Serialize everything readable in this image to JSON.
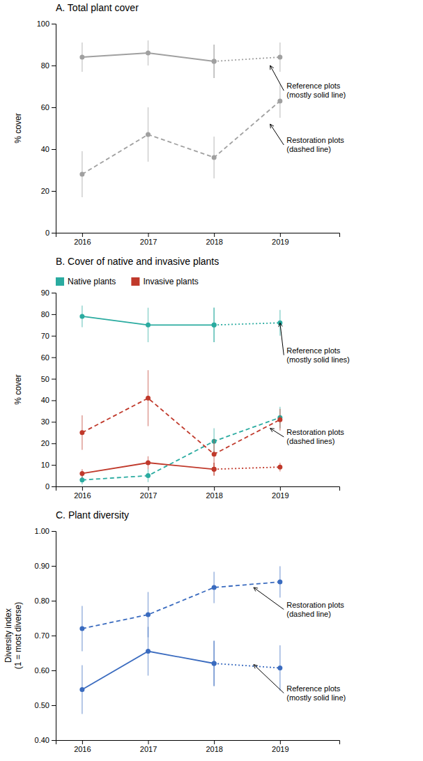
{
  "chart_data": [
    {
      "type": "line",
      "title": "A. Total plant cover",
      "y_label": "% cover",
      "x": [
        2016,
        2017,
        2018,
        2019
      ],
      "xlim": [
        2015.6,
        2019.9
      ],
      "xticks": [
        2016,
        2017,
        2018,
        2019
      ],
      "ylim": [
        0,
        100
      ],
      "yticks": [
        0,
        20,
        40,
        60,
        80,
        100
      ],
      "grid": false,
      "series": [
        {
          "color": "#a0a0a0",
          "line_style": "solid",
          "marker": "circle",
          "values": [
            84,
            86,
            82,
            null
          ],
          "error": [
            7,
            6,
            8,
            null
          ]
        },
        {
          "color": "#a0a0a0",
          "line_style": "dotted",
          "marker": "circle",
          "values": [
            null,
            null,
            82,
            84
          ],
          "error": [
            null,
            null,
            8,
            7
          ]
        },
        {
          "color": "#a0a0a0",
          "line_style": "dashed",
          "marker": "circle",
          "values": [
            28,
            47,
            36,
            63
          ],
          "error": [
            11,
            13,
            10,
            8
          ]
        }
      ],
      "annotations": [
        {
          "text": "Reference plots\n(mostly solid line)",
          "x": 2019.1,
          "y": 68,
          "arrow_x": 2018.85,
          "arrow_y": 80
        },
        {
          "text": "Restoration plots\n(dashed line)",
          "x": 2019.1,
          "y": 42,
          "arrow_x": 2018.85,
          "arrow_y": 52
        }
      ]
    },
    {
      "type": "line",
      "title": "B.  Cover of native and invasive plants",
      "y_label": "% cover",
      "x": [
        2016,
        2017,
        2018,
        2019
      ],
      "xlim": [
        2015.6,
        2019.9
      ],
      "xticks": [
        2016,
        2017,
        2018,
        2019
      ],
      "ylim": [
        0,
        90
      ],
      "yticks": [
        0,
        10,
        20,
        30,
        40,
        50,
        60,
        70,
        80,
        90
      ],
      "grid": false,
      "legend": "top",
      "series": [
        {
          "name": "Native plants",
          "color": "#2aaba0",
          "line_style": "solid",
          "marker": "circle",
          "values": [
            79,
            75,
            75,
            null
          ],
          "error": [
            5,
            8,
            8,
            null
          ]
        },
        {
          "name": "Native plants",
          "color": "#2aaba0",
          "line_style": "dotted",
          "marker": "circle",
          "values": [
            null,
            null,
            75,
            76
          ],
          "error": [
            null,
            null,
            8,
            6
          ]
        },
        {
          "name": "Native plants",
          "color": "#2aaba0",
          "line_style": "dashed",
          "marker": "circle",
          "values": [
            3,
            5,
            21,
            32
          ],
          "error": [
            2,
            3,
            6,
            5
          ]
        },
        {
          "name": "Invasive plants",
          "color": "#c0392b",
          "line_style": "solid",
          "marker": "circle",
          "values": [
            6,
            11,
            8,
            null
          ],
          "error": [
            2,
            3,
            3,
            null
          ]
        },
        {
          "name": "Invasive plants",
          "color": "#c0392b",
          "line_style": "dotted",
          "marker": "circle",
          "values": [
            null,
            null,
            8,
            9
          ],
          "error": [
            null,
            null,
            3,
            2
          ]
        },
        {
          "name": "Invasive plants",
          "color": "#c0392b",
          "line_style": "dashed",
          "marker": "circle",
          "values": [
            25,
            41,
            15,
            31
          ],
          "error": [
            8,
            13,
            7,
            5
          ]
        }
      ],
      "annotations": [
        {
          "text": "Reference plots\n(mostly solid lines)",
          "x": 2019.1,
          "y": 61,
          "arrow_x": 2019.0,
          "arrow_y": 76
        },
        {
          "text": "Restoration plots\n(dashed lines)",
          "x": 2019.1,
          "y": 23,
          "arrow_x": 2018.85,
          "arrow_y": 27
        }
      ]
    },
    {
      "type": "line",
      "title": "C. Plant diversity",
      "y_label": "Diversity index\n(1 = most diverse)",
      "x": [
        2016,
        2017,
        2018,
        2019
      ],
      "xlim": [
        2015.6,
        2019.9
      ],
      "xticks": [
        2016,
        2017,
        2018,
        2019
      ],
      "ylim": [
        0.4,
        1.0
      ],
      "yticks": [
        {
          "value": 0.4,
          "label": "0.40"
        },
        {
          "value": 0.5,
          "label": "0.50"
        },
        {
          "value": 0.6,
          "label": "0.60"
        },
        {
          "value": 0.7,
          "label": "0.70"
        },
        {
          "value": 0.8,
          "label": "0.80"
        },
        {
          "value": 0.9,
          "label": "0.90"
        },
        {
          "value": 1.0,
          "label": "1.00"
        }
      ],
      "grid": false,
      "series": [
        {
          "color": "#3a6bbf",
          "line_style": "solid",
          "marker": "circle",
          "values": [
            0.545,
            0.655,
            0.62,
            null
          ],
          "error": [
            0.07,
            0.07,
            0.065,
            null
          ]
        },
        {
          "color": "#3a6bbf",
          "line_style": "dotted",
          "marker": "circle",
          "values": [
            null,
            null,
            0.62,
            0.607
          ],
          "error": [
            null,
            null,
            0.065,
            0.065
          ]
        },
        {
          "color": "#3a6bbf",
          "line_style": "dashed",
          "marker": "circle",
          "values": [
            0.72,
            0.76,
            0.838,
            0.854
          ],
          "error": [
            0.065,
            0.065,
            0.045,
            0.045
          ]
        }
      ],
      "annotations": [
        {
          "text": "Restoration plots\n(dashed line)",
          "x": 2019.1,
          "y": 0.775,
          "arrow_x": 2018.6,
          "arrow_y": 0.838
        },
        {
          "text": "Reference plots\n(mostly solid line)",
          "x": 2019.1,
          "y": 0.535,
          "arrow_x": 2018.6,
          "arrow_y": 0.617
        }
      ]
    }
  ]
}
